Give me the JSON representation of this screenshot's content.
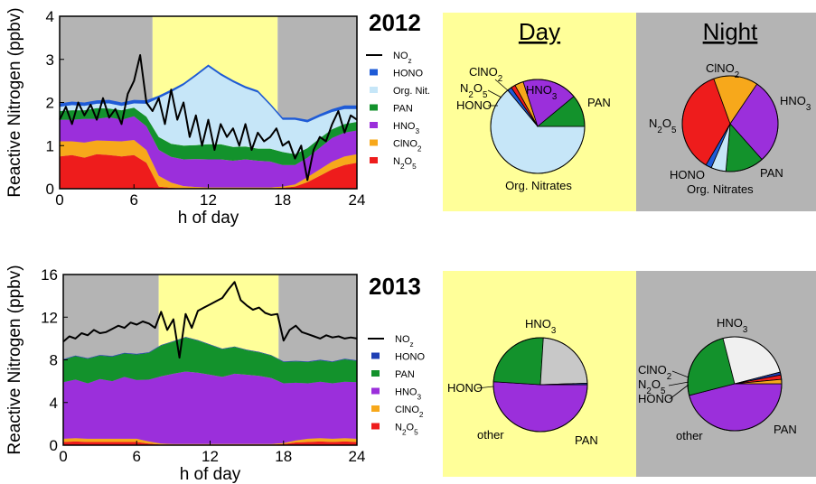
{
  "chart_data": [
    {
      "type": "area",
      "title": "2012",
      "xlabel": "h of day",
      "ylabel": "Reactive Nitrogen (ppbv)",
      "xlim": [
        0,
        24
      ],
      "ylim": [
        0,
        4
      ],
      "x_ticks": [
        "0",
        "6",
        "12",
        "18",
        "24"
      ],
      "y_ticks": [
        "0",
        "1",
        "2",
        "3",
        "4"
      ],
      "shading": [
        {
          "from": 0,
          "to": 7.5,
          "period": "night",
          "color": "#b4b4b4"
        },
        {
          "from": 7.5,
          "to": 17.6,
          "period": "day",
          "color": "#ffff99"
        },
        {
          "from": 17.6,
          "to": 24,
          "period": "night",
          "color": "#b4b4b4"
        }
      ],
      "legend_position": "right",
      "x": [
        0,
        1,
        2,
        3,
        4,
        5,
        6,
        7,
        8,
        9,
        10,
        11,
        12,
        13,
        14,
        15,
        16,
        17,
        18,
        19,
        20,
        21,
        22,
        23,
        24
      ],
      "stacked_series": [
        {
          "name": "N₂O₅",
          "color": "#ee1c1c",
          "values": [
            0.75,
            0.78,
            0.72,
            0.8,
            0.78,
            0.75,
            0.78,
            0.6,
            0.05,
            0.02,
            0.01,
            0.01,
            0.01,
            0.01,
            0.01,
            0.01,
            0.01,
            0.01,
            0.02,
            0.05,
            0.15,
            0.3,
            0.45,
            0.55,
            0.6
          ]
        },
        {
          "name": "ClNO₂",
          "color": "#f7a81b",
          "values": [
            0.35,
            0.32,
            0.35,
            0.32,
            0.33,
            0.35,
            0.35,
            0.3,
            0.25,
            0.12,
            0.05,
            0.03,
            0.02,
            0.02,
            0.02,
            0.02,
            0.02,
            0.02,
            0.03,
            0.05,
            0.12,
            0.15,
            0.18,
            0.2,
            0.2
          ]
        },
        {
          "name": "HNO₃",
          "color": "#9b2fdb",
          "values": [
            0.5,
            0.5,
            0.55,
            0.5,
            0.55,
            0.5,
            0.55,
            0.55,
            0.6,
            0.6,
            0.62,
            0.65,
            0.65,
            0.65,
            0.62,
            0.65,
            0.62,
            0.6,
            0.5,
            0.45,
            0.45,
            0.5,
            0.55,
            0.55,
            0.55
          ]
        },
        {
          "name": "PAN",
          "color": "#13922c",
          "values": [
            0.2,
            0.22,
            0.2,
            0.25,
            0.2,
            0.22,
            0.2,
            0.22,
            0.3,
            0.3,
            0.32,
            0.32,
            0.35,
            0.35,
            0.32,
            0.3,
            0.28,
            0.3,
            0.3,
            0.25,
            0.22,
            0.22,
            0.2,
            0.2,
            0.2
          ]
        },
        {
          "name": "Org. Nit.",
          "color": "#c6e6f8",
          "values": [
            0.1,
            0.12,
            0.1,
            0.1,
            0.12,
            0.1,
            0.1,
            0.3,
            0.9,
            1.2,
            1.4,
            1.6,
            1.8,
            1.6,
            1.5,
            1.35,
            1.3,
            1.0,
            0.75,
            0.8,
            0.6,
            0.5,
            0.4,
            0.35,
            0.3
          ]
        },
        {
          "name": "HONO",
          "color": "#1e5bd7",
          "values": [
            0.08,
            0.08,
            0.08,
            0.08,
            0.08,
            0.08,
            0.08,
            0.08,
            0.06,
            0.06,
            0.05,
            0.05,
            0.05,
            0.05,
            0.05,
            0.05,
            0.05,
            0.05,
            0.05,
            0.05,
            0.06,
            0.06,
            0.07,
            0.08,
            0.08
          ]
        }
      ],
      "line_series": {
        "name": "NOz",
        "color": "#000000",
        "x": [
          0,
          0.5,
          1,
          1.5,
          2,
          2.5,
          3,
          3.5,
          4,
          4.5,
          5,
          5.5,
          6,
          6.5,
          7,
          7.5,
          8,
          8.5,
          9,
          9.5,
          10,
          10.5,
          11,
          11.5,
          12,
          12.5,
          13,
          13.5,
          14,
          14.5,
          15,
          15.5,
          16,
          16.5,
          17,
          17.5,
          18,
          18.5,
          19,
          19.5,
          20,
          20.5,
          21,
          21.5,
          22,
          22.5,
          23,
          23.5,
          24
        ],
        "values": [
          1.6,
          1.9,
          1.5,
          2.0,
          1.7,
          1.95,
          1.6,
          2.1,
          1.65,
          1.85,
          1.5,
          2.2,
          2.5,
          3.1,
          2.0,
          1.8,
          2.1,
          1.5,
          2.3,
          1.6,
          2.0,
          1.2,
          1.7,
          1.0,
          1.6,
          0.9,
          1.5,
          1.2,
          1.4,
          1.0,
          1.5,
          0.9,
          1.3,
          1.1,
          1.2,
          1.4,
          1.0,
          1.1,
          0.7,
          1.0,
          0.2,
          0.9,
          1.2,
          1.1,
          1.5,
          1.8,
          1.3,
          1.7,
          1.6
        ]
      }
    },
    {
      "type": "pie",
      "title": "Day",
      "year": "2012",
      "background": "#ffff99",
      "slices": [
        {
          "label": "Org. Nitrates",
          "value": 64,
          "color": "#c6e6f8"
        },
        {
          "label": "HONO",
          "value": 1.5,
          "color": "#1e5bd7"
        },
        {
          "label": "N₂O₅",
          "value": 1.5,
          "color": "#ee1c1c"
        },
        {
          "label": "ClNO₂",
          "value": 3,
          "color": "#f7a81b"
        },
        {
          "label": "HNO₃",
          "value": 19,
          "color": "#9b2fdb"
        },
        {
          "label": "PAN",
          "value": 11,
          "color": "#13922c"
        }
      ]
    },
    {
      "type": "pie",
      "title": "Night",
      "year": "2012",
      "background": "#b4b4b4",
      "slices": [
        {
          "label": "HNO₃",
          "value": 29,
          "color": "#9b2fdb"
        },
        {
          "label": "PAN",
          "value": 13,
          "color": "#13922c"
        },
        {
          "label": "Org. Nitrates",
          "value": 5,
          "color": "#c6e6f8"
        },
        {
          "label": "HONO",
          "value": 2,
          "color": "#1e5bd7"
        },
        {
          "label": "N₂O₅",
          "value": 36,
          "color": "#ee1c1c"
        },
        {
          "label": "ClNO₂",
          "value": 15,
          "color": "#f7a81b"
        }
      ]
    },
    {
      "type": "area",
      "title": "2013",
      "xlabel": "h of day",
      "ylabel": "Reactive Nitrogen (ppbv)",
      "xlim": [
        0,
        24
      ],
      "ylim": [
        0,
        16
      ],
      "x_ticks": [
        "0",
        "6",
        "12",
        "18",
        "24"
      ],
      "y_ticks": [
        "0",
        "4",
        "8",
        "12",
        "16"
      ],
      "shading": [
        {
          "from": 0,
          "to": 7.8,
          "period": "night",
          "color": "#b4b4b4"
        },
        {
          "from": 7.8,
          "to": 17.6,
          "period": "day",
          "color": "#ffff99"
        },
        {
          "from": 17.6,
          "to": 24,
          "period": "night",
          "color": "#b4b4b4"
        }
      ],
      "legend_position": "right",
      "x": [
        0,
        1,
        2,
        3,
        4,
        5,
        6,
        7,
        8,
        9,
        10,
        11,
        12,
        13,
        14,
        15,
        16,
        17,
        18,
        19,
        20,
        21,
        22,
        23,
        24
      ],
      "stacked_series": [
        {
          "name": "N₂O₅",
          "color": "#ee1c1c",
          "values": [
            0.3,
            0.35,
            0.3,
            0.3,
            0.3,
            0.3,
            0.3,
            0.15,
            0.05,
            0.05,
            0.05,
            0.05,
            0.05,
            0.05,
            0.05,
            0.05,
            0.05,
            0.05,
            0.1,
            0.25,
            0.3,
            0.35,
            0.3,
            0.35,
            0.3
          ]
        },
        {
          "name": "ClNO₂",
          "color": "#f7a81b",
          "values": [
            0.3,
            0.3,
            0.3,
            0.3,
            0.3,
            0.3,
            0.3,
            0.2,
            0.1,
            0.05,
            0.05,
            0.05,
            0.05,
            0.05,
            0.05,
            0.05,
            0.05,
            0.05,
            0.1,
            0.2,
            0.3,
            0.3,
            0.3,
            0.3,
            0.3
          ]
        },
        {
          "name": "HNO₃",
          "color": "#9b2fdb",
          "values": [
            5.3,
            5.5,
            5.2,
            5.6,
            5.4,
            5.8,
            5.5,
            5.8,
            6.3,
            6.6,
            6.8,
            6.7,
            6.5,
            6.3,
            6.6,
            6.5,
            6.4,
            6.2,
            5.6,
            5.4,
            5.2,
            5.3,
            5.2,
            5.3,
            5.3
          ]
        },
        {
          "name": "PAN",
          "color": "#13922c",
          "values": [
            2.1,
            2.2,
            2.3,
            2.2,
            2.3,
            2.2,
            2.4,
            2.5,
            2.9,
            3.0,
            3.2,
            3.0,
            2.8,
            2.6,
            2.5,
            2.3,
            2.2,
            2.1,
            2.0,
            2.0,
            2.0,
            2.0,
            2.0,
            2.1,
            2.0
          ]
        },
        {
          "name": "HONO",
          "color": "#1e3fb4",
          "values": [
            0.06,
            0.06,
            0.06,
            0.06,
            0.06,
            0.06,
            0.06,
            0.06,
            0.05,
            0.05,
            0.05,
            0.05,
            0.05,
            0.05,
            0.05,
            0.05,
            0.05,
            0.05,
            0.05,
            0.06,
            0.06,
            0.06,
            0.06,
            0.06,
            0.06
          ]
        }
      ],
      "line_series": {
        "name": "NOz",
        "color": "#000000",
        "x": [
          0,
          0.5,
          1,
          1.5,
          2,
          2.5,
          3,
          3.5,
          4,
          4.5,
          5,
          5.5,
          6,
          6.5,
          7,
          7.5,
          8,
          8.5,
          9,
          9.5,
          10,
          10.5,
          11,
          11.5,
          12,
          12.5,
          13,
          13.5,
          14,
          14.5,
          15,
          15.5,
          16,
          16.5,
          17,
          17.5,
          18,
          18.5,
          19,
          19.5,
          20,
          20.5,
          21,
          21.5,
          22,
          22.5,
          23,
          23.5,
          24
        ],
        "values": [
          9.7,
          10.2,
          10.0,
          10.5,
          10.3,
          10.8,
          10.5,
          10.6,
          10.9,
          11.2,
          11.0,
          11.5,
          11.3,
          11.6,
          11.4,
          11.0,
          12.5,
          10.8,
          11.8,
          8.2,
          12.3,
          11.0,
          12.6,
          12.9,
          13.2,
          13.5,
          13.8,
          14.6,
          15.3,
          13.6,
          13.1,
          12.7,
          12.9,
          12.4,
          12.2,
          12.3,
          9.8,
          10.8,
          11.2,
          10.6,
          10.4,
          10.2,
          10.0,
          10.3,
          10.1,
          10.2,
          10.0,
          10.1,
          10.0
        ]
      }
    },
    {
      "type": "pie",
      "title": "",
      "year": "2013",
      "period": "day",
      "background": "#ffff99",
      "slices": [
        {
          "label": "HNO₃",
          "value": 51,
          "color": "#9b2fdb"
        },
        {
          "label": "PAN",
          "value": 25,
          "color": "#13922c"
        },
        {
          "label": "other",
          "value": 23.5,
          "color": "#c8c8c8"
        },
        {
          "label": "HONO",
          "value": 0.5,
          "color": "#1e3fb4"
        }
      ]
    },
    {
      "type": "pie",
      "title": "",
      "year": "2013",
      "period": "night",
      "background": "#b4b4b4",
      "slices": [
        {
          "label": "HNO₃",
          "value": 46,
          "color": "#9b2fdb"
        },
        {
          "label": "PAN",
          "value": 25,
          "color": "#13922c"
        },
        {
          "label": "other",
          "value": 25,
          "color": "#f0f0f0"
        },
        {
          "label": "HONO",
          "value": 1,
          "color": "#1e3fb4"
        },
        {
          "label": "N₂O₅",
          "value": 1.5,
          "color": "#ee1c1c"
        },
        {
          "label": "ClNO₂",
          "value": 1.5,
          "color": "#f7a81b"
        }
      ]
    }
  ],
  "legends": {
    "y2012": [
      "NOz",
      "HONO",
      "Org. Nit.",
      "PAN",
      "HNO₃",
      "ClNO₂",
      "N₂O₅"
    ],
    "y2013": [
      "NOz",
      "HONO",
      "PAN",
      "HNO₃",
      "ClNO₂",
      "N₂O₅"
    ]
  },
  "labels": {
    "year2012": "2012",
    "year2013": "2013",
    "day": "Day",
    "night": "Night",
    "ylabel": "Reactive Nitrogen (ppbv)",
    "xlabel": "h of day"
  }
}
